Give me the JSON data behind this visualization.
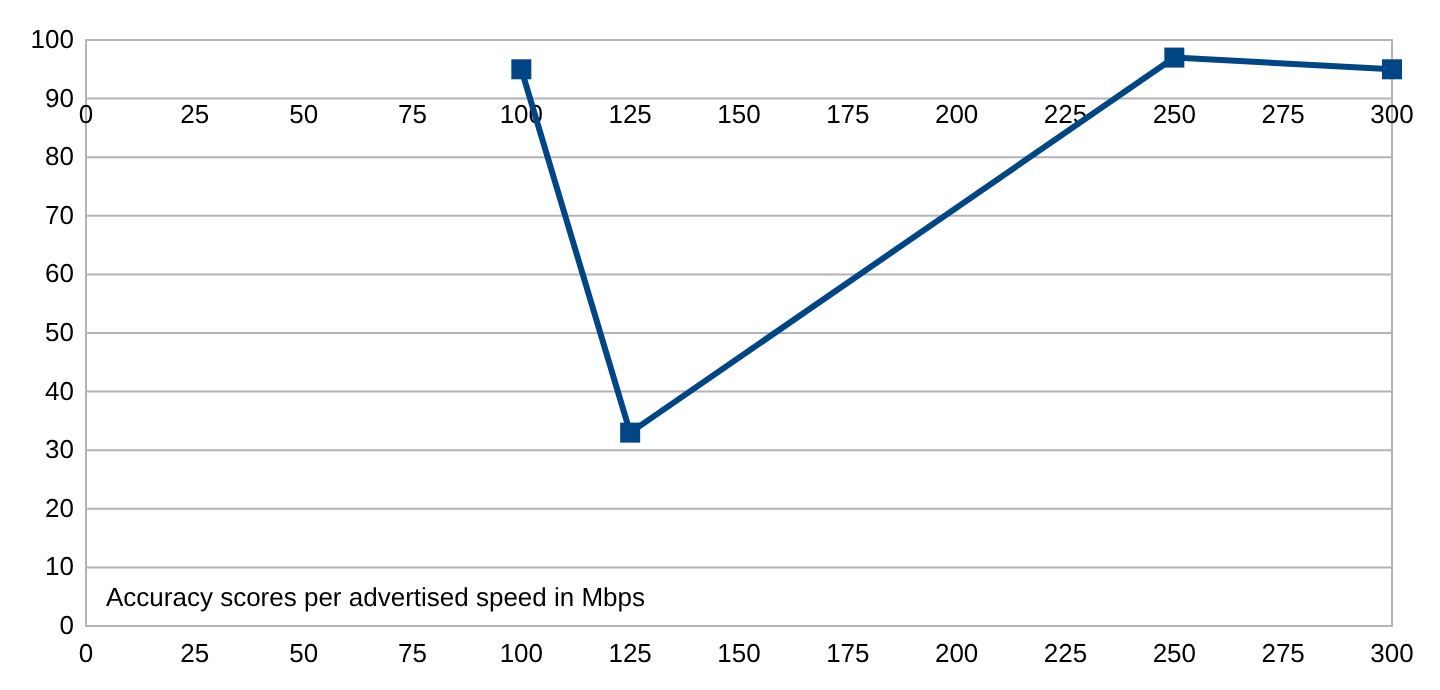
{
  "chart_data": {
    "type": "line",
    "x": [
      100,
      125,
      250,
      300
    ],
    "series": [
      {
        "color": "#004586",
        "values": [
          95,
          33,
          97,
          95
        ]
      }
    ],
    "xlim": [
      0,
      300
    ],
    "xticks": [
      0,
      25,
      50,
      75,
      100,
      125,
      150,
      175,
      200,
      225,
      250,
      275,
      300
    ],
    "x2lim": [
      0,
      300
    ],
    "x2ticks": [
      0,
      25,
      50,
      75,
      100,
      125,
      150,
      175,
      200,
      225,
      250,
      275,
      300
    ],
    "ylim": [
      0,
      100
    ],
    "yticks": [
      0,
      10,
      20,
      30,
      40,
      50,
      60,
      70,
      80,
      90,
      100
    ],
    "grid": "y",
    "marker": "square",
    "line_style": "solid",
    "annotations": [
      "Accuracy scores per advertised speed in Mbps"
    ]
  }
}
